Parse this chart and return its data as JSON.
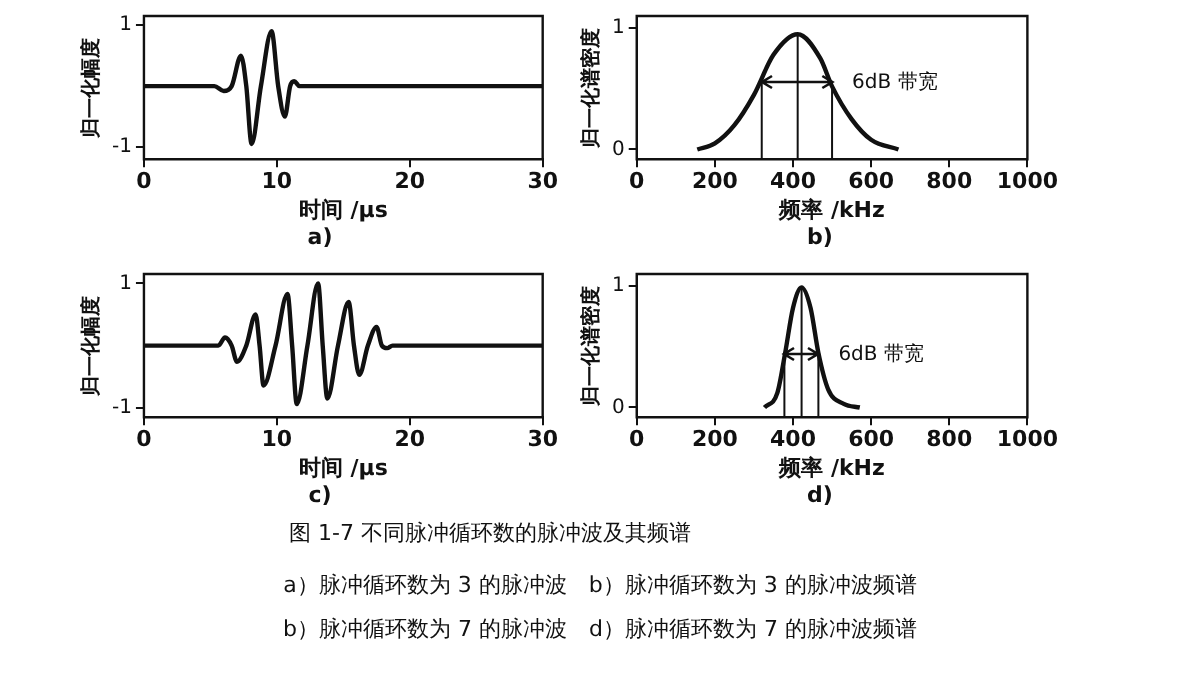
{
  "chart_data": [
    {
      "type": "line",
      "subtitle": "a)",
      "xlabel": "时间 /μs",
      "ylabel": "归一化幅度",
      "color": "#111111",
      "xlim": [
        0,
        30
      ],
      "xticks": [
        0,
        10,
        20,
        30
      ],
      "ylim": [
        -1.2,
        1.15
      ],
      "yticks": [
        -1,
        1
      ],
      "x": [
        0,
        5.3,
        6,
        6.6,
        7.3,
        7.7,
        8.1,
        8.8,
        9.6,
        10.1,
        10.6,
        11,
        11.3,
        11.7,
        30
      ],
      "values": [
        0,
        0,
        -0.08,
        0,
        0.5,
        0,
        -0.95,
        0,
        0.9,
        0,
        -0.5,
        0,
        0.08,
        0,
        0
      ]
    },
    {
      "type": "line",
      "subtitle": "b)",
      "xlabel": "频率 /kHz",
      "ylabel": "归一化谱密度",
      "color": "#111111",
      "xlim": [
        0,
        1000
      ],
      "xticks": [
        0,
        200,
        400,
        600,
        800,
        1000
      ],
      "ylim": [
        -0.08,
        1.1
      ],
      "yticks": [
        0,
        1
      ],
      "x": [
        155,
        200,
        250,
        300,
        350,
        412,
        470,
        500,
        550,
        600,
        670
      ],
      "values": [
        0,
        0.05,
        0.2,
        0.45,
        0.78,
        0.95,
        0.75,
        0.52,
        0.25,
        0.08,
        0
      ],
      "ref_lines": [
        {
          "axis": "x",
          "value": 320
        },
        {
          "axis": "x",
          "value": 412
        },
        {
          "axis": "x",
          "value": 500
        }
      ],
      "annotations": [
        "6dB 带宽"
      ]
    },
    {
      "type": "line",
      "subtitle": "c)",
      "xlabel": "时间 /μs",
      "ylabel": "归一化幅度",
      "color": "#111111",
      "xlim": [
        0,
        30
      ],
      "xticks": [
        0,
        10,
        20,
        30
      ],
      "ylim": [
        -1.15,
        1.15
      ],
      "yticks": [
        -1,
        1
      ],
      "x": [
        0,
        5.6,
        6.1,
        6.6,
        7.0,
        7.7,
        8.4,
        8.7,
        9.0,
        9.9,
        10.8,
        11.15,
        11.5,
        12.3,
        13.1,
        13.45,
        13.8,
        14.6,
        15.4,
        15.8,
        16.2,
        16.85,
        17.5,
        17.9,
        18.3,
        18.7,
        30
      ],
      "values": [
        0,
        0,
        0.13,
        0,
        -0.26,
        0,
        0.5,
        0,
        -0.64,
        0,
        0.83,
        0,
        -0.94,
        0,
        1.0,
        0,
        -0.85,
        0,
        0.7,
        0,
        -0.47,
        0,
        0.3,
        0,
        -0.04,
        0,
        0
      ]
    },
    {
      "type": "line",
      "subtitle": "d)",
      "xlabel": "频率 /kHz",
      "ylabel": "归一化谱密度",
      "color": "#111111",
      "xlim": [
        0,
        1000
      ],
      "xticks": [
        0,
        200,
        400,
        600,
        800,
        1000
      ],
      "ylim": [
        -0.08,
        1.1
      ],
      "yticks": [
        0,
        1
      ],
      "x": [
        327,
        360,
        380,
        400,
        422,
        445,
        465,
        490,
        530,
        571
      ],
      "values": [
        0,
        0.12,
        0.45,
        0.82,
        0.99,
        0.82,
        0.45,
        0.15,
        0.03,
        0
      ],
      "ref_lines": [
        {
          "axis": "x",
          "value": 378
        },
        {
          "axis": "x",
          "value": 422
        },
        {
          "axis": "x",
          "value": 465
        }
      ],
      "annotations": [
        "6dB 带宽"
      ]
    },
    {
      "type": "other",
      "title": "图 1-7 不同脉冲循环数的脉冲波及其频谱",
      "annotations": [
        "a）脉冲循环数为 3 的脉冲波　b）脉冲循环数为 3 的脉冲波频谱",
        "b）脉冲循环数为 7 的脉冲波　d）脉冲循环数为 7 的脉冲波频谱"
      ]
    }
  ]
}
